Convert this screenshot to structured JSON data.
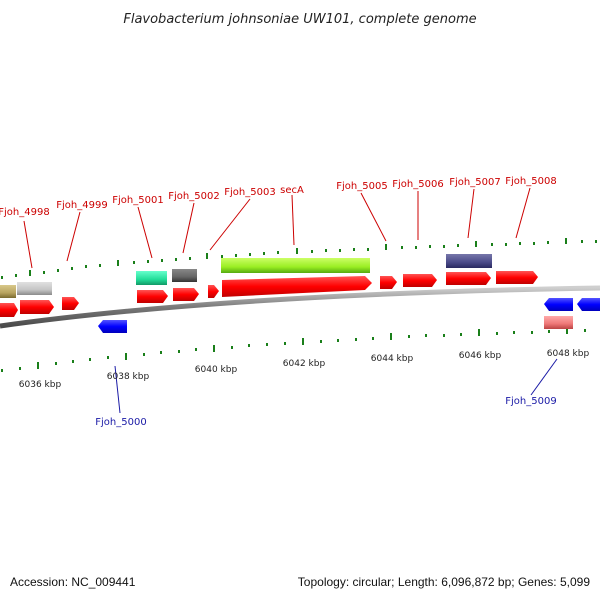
{
  "title": "Flavobacterium johnsoniae UW101, complete genome",
  "footer": {
    "accession": "Accession: NC_009441",
    "summary": "Topology: circular; Length: 6,096,872 bp; Genes: 5,099"
  },
  "colors": {
    "forward_cds": "#ff0000",
    "reverse_cds": "#0000ff",
    "tick_mark": "#1a7f1a",
    "backbone": "#8a8a8a",
    "label_forward": "#cc0000",
    "label_reverse": "#1a1aa6"
  },
  "scale_labels": [
    "6036 kbp",
    "6038 kbp",
    "6040 kbp",
    "6042 kbp",
    "6044 kbp",
    "6046 kbp",
    "6048 kbp"
  ],
  "gene_labels": {
    "fjoh_4998": "Fjoh_4998",
    "fjoh_4999": "Fjoh_4999",
    "fjoh_5000": "Fjoh_5000",
    "fjoh_5001": "Fjoh_5001",
    "fjoh_5002": "Fjoh_5002",
    "fjoh_5003": "Fjoh_5003",
    "seca": "secA",
    "fjoh_5005": "Fjoh_5005",
    "fjoh_5006": "Fjoh_5006",
    "fjoh_5007": "Fjoh_5007",
    "fjoh_5008": "Fjoh_5008",
    "fjoh_5009": "Fjoh_5009"
  }
}
